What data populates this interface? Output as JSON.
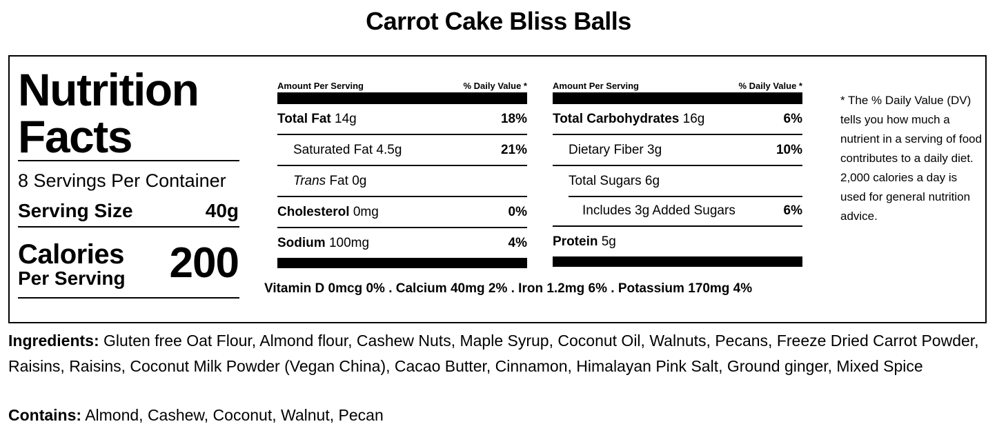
{
  "title": "Carrot Cake Bliss Balls",
  "label": {
    "heading_line1": "Nutrition",
    "heading_line2": "Facts",
    "servings_per_container": "8 Servings Per Container",
    "serving_size_label": "Serving Size",
    "serving_size_value": "40g",
    "calories_label": "Calories",
    "calories_sub": "Per Serving",
    "calories_value": "200"
  },
  "left_column": {
    "header_left": "Amount Per Serving",
    "header_right": "% Daily Value *",
    "rows": [
      {
        "name": "Total Fat",
        "amount": "14g",
        "dv": "18%"
      },
      {
        "name": "Saturated Fat",
        "amount": "4.5g",
        "dv": "21%"
      },
      {
        "name": "Trans",
        "name_suffix": "Fat",
        "amount": "0g",
        "dv": ""
      },
      {
        "name": "Cholesterol",
        "amount": "0mg",
        "dv": "0%"
      },
      {
        "name": "Sodium",
        "amount": "100mg",
        "dv": "4%"
      }
    ]
  },
  "right_column": {
    "header_left": "Amount Per Serving",
    "header_right": "% Daily Value *",
    "rows": [
      {
        "name": "Total Carbohydrates",
        "amount": "16g",
        "dv": "6%"
      },
      {
        "name": "Dietary Fiber",
        "amount": "3g",
        "dv": "10%"
      },
      {
        "name": "Total Sugars",
        "amount": "6g",
        "dv": ""
      },
      {
        "name": "Includes 3g Added Sugars",
        "amount": "",
        "dv": "6%"
      },
      {
        "name": "Protein",
        "amount": "5g",
        "dv": ""
      }
    ]
  },
  "vitamins": "Vitamin D 0mcg 0% . Calcium 40mg 2% . Iron 1.2mg 6% . Potassium 170mg 4%",
  "footnote": "* The % Daily Value (DV) tells you how much a nutrient in a serving of food contributes to a daily diet. 2,000 calories a day is used for general nutrition advice.",
  "ingredients": {
    "label": "Ingredients:",
    "text": "Gluten free Oat Flour, Almond flour, Cashew Nuts, Maple Syrup, Coconut Oil, Walnuts, Pecans, Freeze Dried Carrot Powder, Raisins, Raisins, Coconut Milk Powder (Vegan China), Cacao Butter, Cinnamon, Himalayan Pink Salt, Ground ginger, Mixed Spice"
  },
  "contains": {
    "label": "Contains:",
    "text": "Almond, Cashew, Coconut, Walnut, Pecan"
  }
}
